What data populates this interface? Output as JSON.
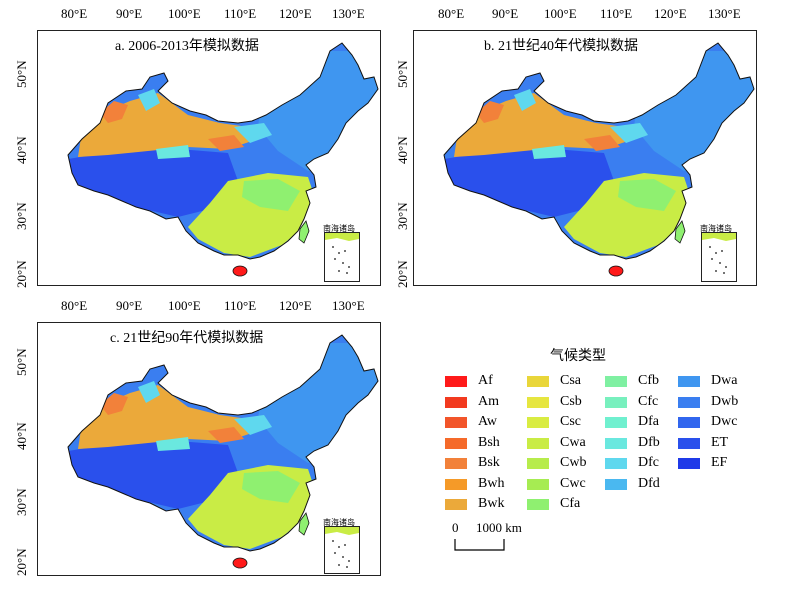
{
  "panels": [
    {
      "title": "a. 2006-2013年模拟数据"
    },
    {
      "title": "b. 21世纪40年代模拟数据"
    },
    {
      "title": "c. 21世纪90年代模拟数据"
    }
  ],
  "lon_ticks": [
    "80°E",
    "90°E",
    "100°E",
    "110°E",
    "120°E",
    "130°E"
  ],
  "lat_ticks": [
    "50°N",
    "40°N",
    "30°N",
    "20°N"
  ],
  "inset_label": "南海诸岛",
  "legend": {
    "title": "气候类型",
    "items": [
      {
        "code": "Af",
        "color": "#ff1a1a"
      },
      {
        "code": "Am",
        "color": "#f23a1f"
      },
      {
        "code": "Aw",
        "color": "#f2552a"
      },
      {
        "code": "Bsh",
        "color": "#f56a2a"
      },
      {
        "code": "Bsk",
        "color": "#f2813a"
      },
      {
        "code": "Bwh",
        "color": "#f59a28"
      },
      {
        "code": "Bwk",
        "color": "#eba93a"
      },
      {
        "code": "Csa",
        "color": "#e9d63a"
      },
      {
        "code": "Csb",
        "color": "#e6e640"
      },
      {
        "code": "Csc",
        "color": "#d9ec42"
      },
      {
        "code": "Cwa",
        "color": "#c9ec45"
      },
      {
        "code": "Cwb",
        "color": "#b7ec4c"
      },
      {
        "code": "Cwc",
        "color": "#a6ec52"
      },
      {
        "code": "Cfa",
        "color": "#8ff070"
      },
      {
        "code": "Cfb",
        "color": "#7ff0a2"
      },
      {
        "code": "Cfc",
        "color": "#78f0be"
      },
      {
        "code": "Dfa",
        "color": "#70f0cf"
      },
      {
        "code": "Dfb",
        "color": "#6ae8df"
      },
      {
        "code": "Dfc",
        "color": "#5fd8ee"
      },
      {
        "code": "Dfd",
        "color": "#4ab8f0"
      },
      {
        "code": "Dwa",
        "color": "#3f96f0"
      },
      {
        "code": "Dwb",
        "color": "#3a7ef0"
      },
      {
        "code": "Dwc",
        "color": "#3166ee"
      },
      {
        "code": "ET",
        "color": "#2a50ec"
      },
      {
        "code": "EF",
        "color": "#1f3ae8"
      }
    ]
  },
  "scale": {
    "zero": "0",
    "distance": "1000 km"
  }
}
